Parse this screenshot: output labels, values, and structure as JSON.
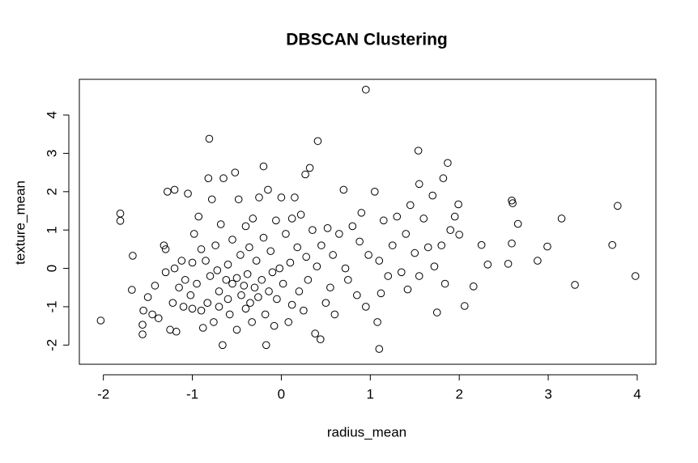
{
  "chart_data": {
    "type": "scatter",
    "title": "DBSCAN Clustering",
    "x_label": "radius_mean",
    "y_label": "texture_mean",
    "color": "#000000",
    "x": [
      -2.03,
      -1.81,
      -1.81,
      -1.67,
      -1.68,
      -1.56,
      -1.56,
      -1.55,
      -1.5,
      -1.45,
      -1.42,
      -1.38,
      -1.32,
      -1.3,
      -1.3,
      -1.28,
      -1.25,
      -1.22,
      -1.2,
      -1.2,
      -1.18,
      -1.15,
      -1.12,
      -1.1,
      -1.08,
      -1.05,
      -1.02,
      -1.0,
      -1.0,
      -0.98,
      -0.95,
      -0.93,
      -0.9,
      -0.9,
      -0.88,
      -0.85,
      -0.83,
      -0.82,
      -0.81,
      -0.8,
      -0.78,
      -0.76,
      -0.74,
      -0.72,
      -0.7,
      -0.7,
      -0.68,
      -0.66,
      -0.65,
      -0.62,
      -0.6,
      -0.6,
      -0.58,
      -0.55,
      -0.55,
      -0.52,
      -0.5,
      -0.5,
      -0.48,
      -0.46,
      -0.45,
      -0.42,
      -0.4,
      -0.4,
      -0.38,
      -0.36,
      -0.35,
      -0.33,
      -0.32,
      -0.3,
      -0.28,
      -0.26,
      -0.25,
      -0.22,
      -0.2,
      -0.2,
      -0.18,
      -0.17,
      -0.15,
      -0.14,
      -0.12,
      -0.1,
      -0.08,
      -0.06,
      -0.05,
      -0.02,
      0.0,
      0.02,
      0.05,
      0.08,
      0.1,
      0.12,
      0.12,
      0.15,
      0.18,
      0.2,
      0.22,
      0.25,
      0.27,
      0.28,
      0.3,
      0.32,
      0.35,
      0.38,
      0.4,
      0.41,
      0.44,
      0.45,
      0.5,
      0.52,
      0.55,
      0.58,
      0.6,
      0.65,
      0.7,
      0.72,
      0.75,
      0.8,
      0.85,
      0.88,
      0.9,
      0.95,
      0.95,
      0.98,
      1.05,
      1.08,
      1.1,
      1.1,
      1.12,
      1.15,
      1.2,
      1.25,
      1.3,
      1.35,
      1.4,
      1.42,
      1.45,
      1.5,
      1.54,
      1.55,
      1.55,
      1.6,
      1.65,
      1.7,
      1.72,
      1.75,
      1.8,
      1.82,
      1.84,
      1.87,
      1.9,
      1.95,
      1.99,
      2.0,
      2.06,
      2.16,
      2.25,
      2.32,
      2.55,
      2.59,
      2.59,
      2.6,
      2.66,
      2.88,
      2.99,
      3.15,
      3.3,
      3.72,
      3.78,
      3.98
    ],
    "y": [
      -1.36,
      1.43,
      1.24,
      0.33,
      -0.56,
      -1.72,
      -1.47,
      -1.1,
      -0.75,
      -1.2,
      -0.45,
      -1.3,
      0.6,
      0.5,
      -0.1,
      2.0,
      -1.6,
      -0.9,
      0.0,
      2.05,
      -1.65,
      -0.5,
      0.2,
      -1.0,
      -0.3,
      1.95,
      -0.7,
      0.15,
      -1.05,
      0.9,
      -0.4,
      1.35,
      0.5,
      -1.1,
      -1.55,
      0.2,
      -0.9,
      2.35,
      3.38,
      -0.2,
      1.8,
      -1.4,
      0.6,
      -0.05,
      -0.6,
      -1.0,
      1.15,
      -2.0,
      2.35,
      -0.3,
      0.1,
      -0.8,
      -1.2,
      0.75,
      -0.4,
      2.5,
      -0.25,
      -1.6,
      1.8,
      0.35,
      -0.7,
      -0.45,
      1.1,
      -1.05,
      -0.15,
      0.55,
      -0.9,
      -1.4,
      1.3,
      -0.5,
      0.2,
      -0.75,
      1.85,
      -0.3,
      2.66,
      0.8,
      -1.2,
      -2.0,
      2.05,
      -0.6,
      0.45,
      -0.1,
      -1.5,
      1.25,
      -0.8,
      0.0,
      1.85,
      -0.4,
      0.9,
      -1.4,
      0.15,
      1.3,
      -0.95,
      1.85,
      0.55,
      -0.6,
      1.4,
      -1.1,
      2.45,
      0.3,
      -0.3,
      2.62,
      1.0,
      -1.7,
      0.05,
      3.32,
      -1.85,
      0.6,
      -0.9,
      1.05,
      -0.5,
      0.35,
      -1.2,
      0.9,
      2.05,
      0.0,
      -0.3,
      1.1,
      -0.7,
      0.7,
      1.45,
      4.66,
      -1.0,
      0.35,
      2.0,
      -1.4,
      -2.1,
      0.2,
      -0.65,
      1.25,
      -0.2,
      0.6,
      1.35,
      -0.1,
      0.9,
      -0.55,
      1.65,
      0.4,
      3.07,
      2.2,
      -0.2,
      1.3,
      0.55,
      1.9,
      0.05,
      -1.15,
      0.6,
      2.35,
      -0.4,
      2.75,
      1.0,
      1.35,
      1.67,
      0.88,
      -0.98,
      -0.47,
      0.61,
      0.1,
      0.12,
      0.65,
      1.77,
      1.7,
      1.16,
      0.2,
      0.57,
      1.3,
      -0.43,
      0.61,
      1.63,
      -0.2
    ],
    "xlim": [
      -2.27,
      4.21
    ],
    "ylim": [
      -2.5,
      4.93
    ],
    "xticks": [
      -2,
      -1,
      0,
      1,
      2,
      3,
      4
    ],
    "yticks": [
      -2,
      -1,
      0,
      1,
      2,
      3,
      4
    ]
  }
}
